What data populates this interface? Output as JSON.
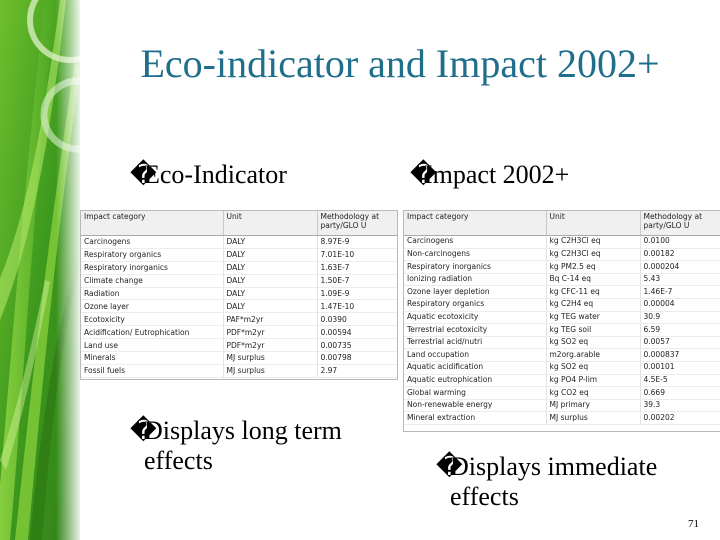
{
  "title": "Eco-indicator and Impact 2002+",
  "bullet_glyph": "�",
  "left": {
    "heading": "Eco-Indicator",
    "note_line1": "Displays long term",
    "note_line2": "effects",
    "table": {
      "headers": [
        "Impact category",
        "Unit",
        "Methodology at party/GLO U"
      ],
      "rows": [
        [
          "Carcinogens",
          "DALY",
          "8.97E-9"
        ],
        [
          "Respiratory organics",
          "DALY",
          "7.01E-10"
        ],
        [
          "Respiratory inorganics",
          "DALY",
          "1.63E-7"
        ],
        [
          "Climate change",
          "DALY",
          "1.50E-7"
        ],
        [
          "Radiation",
          "DALY",
          "1.09E-9"
        ],
        [
          "Ozone layer",
          "DALY",
          "1.47E-10"
        ],
        [
          "Ecotoxicity",
          "PAF*m2yr",
          "0.0390"
        ],
        [
          "Acidification/ Eutrophication",
          "PDF*m2yr",
          "0.00594"
        ],
        [
          "Land use",
          "PDF*m2yr",
          "0.00735"
        ],
        [
          "Minerals",
          "MJ surplus",
          "0.00798"
        ],
        [
          "Fossil fuels",
          "MJ surplus",
          "2.97"
        ]
      ]
    }
  },
  "right": {
    "heading": "Impact 2002+",
    "note_line1": "Displays immediate",
    "note_line2": "effects",
    "table": {
      "headers": [
        "Impact category",
        "Unit",
        "Methodology at party/GLO U"
      ],
      "rows": [
        [
          "Carcinogens",
          "kg C2H3Cl eq",
          "0.0100"
        ],
        [
          "Non-carcinogens",
          "kg C2H3Cl eq",
          "0.00182"
        ],
        [
          "Respiratory inorganics",
          "kg PM2.5 eq",
          "0.000204"
        ],
        [
          "Ionizing radiation",
          "Bq C-14 eq",
          "5.43"
        ],
        [
          "Ozone layer depletion",
          "kg CFC-11 eq",
          "1.46E-7"
        ],
        [
          "Respiratory organics",
          "kg C2H4 eq",
          "0.00004"
        ],
        [
          "Aquatic ecotoxicity",
          "kg TEG water",
          "30.9"
        ],
        [
          "Terrestrial ecotoxicity",
          "kg TEG soil",
          "6.59"
        ],
        [
          "Terrestrial acid/nutri",
          "kg SO2 eq",
          "0.0057"
        ],
        [
          "Land occupation",
          "m2org.arable",
          "0.000837"
        ],
        [
          "Aquatic acidification",
          "kg SO2 eq",
          "0.00101"
        ],
        [
          "Aquatic eutrophication",
          "kg PO4 P-lim",
          "4.5E-5"
        ],
        [
          "Global warming",
          "kg CO2 eq",
          "0.669"
        ],
        [
          "Non-renewable energy",
          "MJ primary",
          "39.3"
        ],
        [
          "Mineral extraction",
          "MJ surplus",
          "0.00202"
        ]
      ]
    }
  },
  "page_number": "71"
}
